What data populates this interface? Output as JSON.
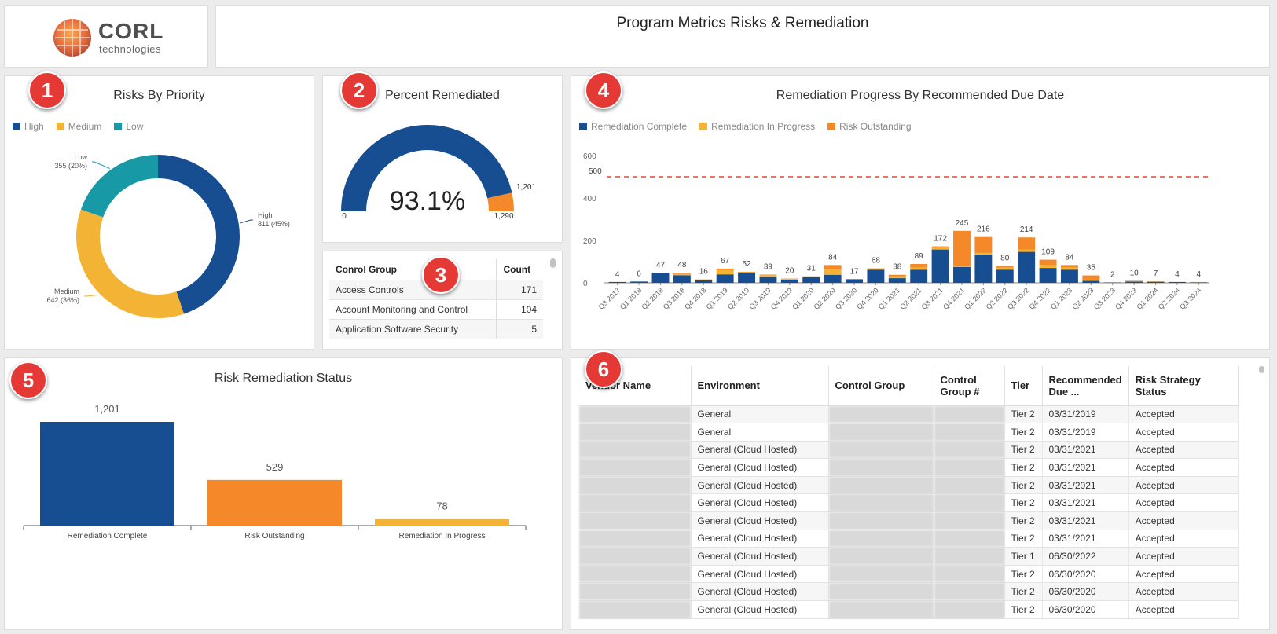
{
  "header": {
    "logo_name": "CORL",
    "logo_sub": "technologies",
    "title": "Program Metrics Risks & Remediation"
  },
  "badges": [
    "1",
    "2",
    "3",
    "4",
    "5",
    "6"
  ],
  "colors": {
    "high": "#164e91",
    "medium": "#f3b334",
    "low": "#1799a6",
    "complete": "#164e91",
    "in_progress": "#f3b334",
    "outstanding": "#f5892a",
    "target_line": "#e8452d"
  },
  "risks_by_priority": {
    "title": "Risks By Priority",
    "legend": [
      "High",
      "Medium",
      "Low"
    ],
    "chart_data": {
      "type": "pie",
      "title": "Risks By Priority",
      "labels": [
        "High",
        "Medium",
        "Low"
      ],
      "values": [
        811,
        642,
        355
      ],
      "value_labels": [
        "811 (45%)",
        "642 (36%)",
        "355 (20%)"
      ],
      "legend": "top-left"
    }
  },
  "percent_remediated": {
    "title": "Percent Remediated",
    "value_text": "93.1%",
    "min_label": "0",
    "max_label": "1,290",
    "mark_label": "1,201",
    "chart_data": {
      "type": "gauge",
      "min": 0,
      "max": 1290,
      "remediated": 1201,
      "percent": 93.1
    }
  },
  "control_group_table": {
    "columns": [
      "Conrol Group",
      "Count"
    ],
    "rows": [
      [
        "Access Controls",
        "171"
      ],
      [
        "Account Monitoring and Control",
        "104"
      ],
      [
        "Application Software Security",
        "5"
      ]
    ]
  },
  "remediation_progress": {
    "title": "Remediation Progress By Recommended Due Date",
    "legend": [
      "Remediation Complete",
      "Remediation In Progress",
      "Risk Outstanding"
    ],
    "target_label": "500",
    "y_ticks": [
      "0",
      "200",
      "400",
      "600"
    ],
    "chart_data": {
      "type": "bar",
      "stacked": true,
      "title": "Remediation Progress By Recommended Due Date",
      "categories": [
        "Q3 2017",
        "Q1 2018",
        "Q2 2018",
        "Q3 2018",
        "Q4 2018",
        "Q1 2019",
        "Q2 2019",
        "Q3 2019",
        "Q4 2019",
        "Q1 2020",
        "Q2 2020",
        "Q3 2020",
        "Q4 2020",
        "Q1 2021",
        "Q2 2021",
        "Q3 2021",
        "Q4 2021",
        "Q1 2022",
        "Q2 2022",
        "Q3 2022",
        "Q4 2022",
        "Q1 2023",
        "Q2 2023",
        "Q3 2023",
        "Q4 2023",
        "Q1 2024",
        "Q2 2024",
        "Q3 2024"
      ],
      "totals": [
        4,
        6,
        47,
        48,
        16,
        67,
        52,
        39,
        20,
        31,
        84,
        17,
        68,
        38,
        89,
        172,
        245,
        216,
        80,
        214,
        109,
        84,
        35,
        2,
        10,
        7,
        4,
        4
      ],
      "series": [
        {
          "name": "Remediation Complete",
          "values": [
            4,
            6,
            47,
            36,
            12,
            40,
            48,
            28,
            15,
            28,
            38,
            17,
            62,
            22,
            62,
            157,
            75,
            133,
            62,
            146,
            70,
            62,
            10,
            2,
            6,
            5,
            4,
            2
          ]
        },
        {
          "name": "Remediation In Progress",
          "values": [
            0,
            0,
            0,
            6,
            2,
            20,
            2,
            8,
            3,
            2,
            24,
            0,
            4,
            8,
            10,
            10,
            5,
            8,
            10,
            10,
            14,
            10,
            5,
            0,
            2,
            1,
            0,
            1
          ]
        },
        {
          "name": "Risk Outstanding",
          "values": [
            0,
            0,
            0,
            6,
            2,
            7,
            2,
            3,
            2,
            1,
            22,
            0,
            2,
            8,
            17,
            5,
            165,
            75,
            8,
            58,
            25,
            12,
            20,
            0,
            2,
            1,
            0,
            1
          ]
        }
      ],
      "target": 500,
      "ylim": [
        0,
        600
      ],
      "legend": "top-left"
    }
  },
  "risk_remediation_status": {
    "title": "Risk Remediation Status",
    "chart_data": {
      "type": "bar",
      "title": "Risk Remediation Status",
      "categories": [
        "Remediation Complete",
        "Risk Outstanding",
        "Remediation In Progress"
      ],
      "values": [
        1201,
        529,
        78
      ],
      "value_labels": [
        "1,201",
        "529",
        "78"
      ]
    }
  },
  "vendor_table": {
    "columns": [
      "Vendor Name",
      "Environment",
      "Control Group",
      "Control Group #",
      "Tier",
      "Recommended Due ...",
      "Risk Strategy Status"
    ],
    "rows": [
      [
        "",
        "General",
        "",
        "",
        "Tier 2",
        "03/31/2019",
        "Accepted"
      ],
      [
        "",
        "General",
        "",
        "",
        "Tier 2",
        "03/31/2019",
        "Accepted"
      ],
      [
        "",
        "General (Cloud Hosted)",
        "",
        "",
        "Tier 2",
        "03/31/2021",
        "Accepted"
      ],
      [
        "",
        "General (Cloud Hosted)",
        "",
        "",
        "Tier 2",
        "03/31/2021",
        "Accepted"
      ],
      [
        "",
        "General (Cloud Hosted)",
        "",
        "",
        "Tier 2",
        "03/31/2021",
        "Accepted"
      ],
      [
        "",
        "General (Cloud Hosted)",
        "",
        "",
        "Tier 2",
        "03/31/2021",
        "Accepted"
      ],
      [
        "",
        "General (Cloud Hosted)",
        "",
        "",
        "Tier 2",
        "03/31/2021",
        "Accepted"
      ],
      [
        "",
        "General (Cloud Hosted)",
        "",
        "",
        "Tier 2",
        "03/31/2021",
        "Accepted"
      ],
      [
        "",
        "General (Cloud Hosted)",
        "",
        "",
        "Tier 1",
        "06/30/2022",
        "Accepted"
      ],
      [
        "",
        "General (Cloud Hosted)",
        "",
        "",
        "Tier 2",
        "06/30/2020",
        "Accepted"
      ],
      [
        "",
        "General (Cloud Hosted)",
        "",
        "",
        "Tier 2",
        "06/30/2020",
        "Accepted"
      ],
      [
        "",
        "General (Cloud Hosted)",
        "",
        "",
        "Tier 2",
        "06/30/2020",
        "Accepted"
      ]
    ]
  }
}
